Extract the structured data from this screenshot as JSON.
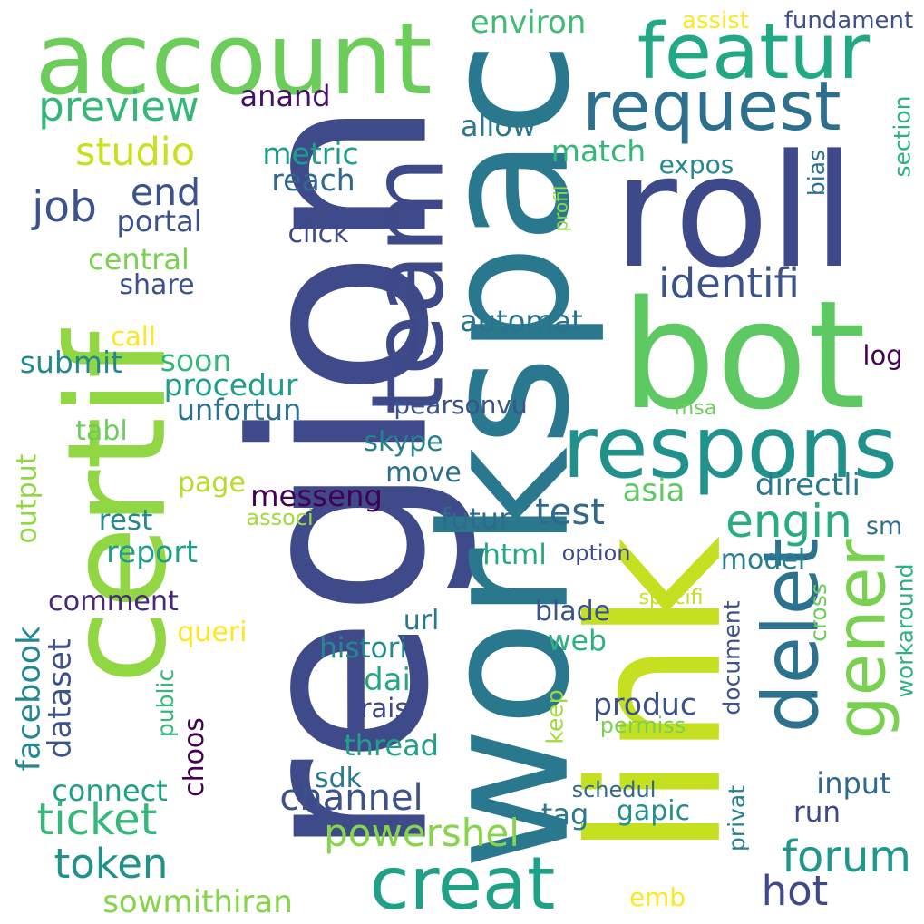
{
  "words": [
    {
      "text": "region",
      "color": "#3f4a8a"
    },
    {
      "text": "workspac",
      "color": "#2a788e"
    },
    {
      "text": "link",
      "color": "#c4e021"
    },
    {
      "text": "bot",
      "color": "#5ec962"
    },
    {
      "text": "certif",
      "color": "#90d743"
    },
    {
      "text": "roll",
      "color": "#3e4989"
    },
    {
      "text": "account",
      "color": "#6ccd5a"
    },
    {
      "text": "team",
      "color": "#3e4989"
    },
    {
      "text": "respons",
      "color": "#21918c"
    },
    {
      "text": "featur",
      "color": "#22a884"
    },
    {
      "text": "creat",
      "color": "#1fa187"
    },
    {
      "text": "request",
      "color": "#2d708e"
    },
    {
      "text": "gener",
      "color": "#7ad151"
    },
    {
      "text": "delet",
      "color": "#2c728e"
    },
    {
      "text": "test",
      "color": "#31688e"
    },
    {
      "text": "engin",
      "color": "#27ad81"
    },
    {
      "text": "identifi",
      "color": "#3b528b"
    },
    {
      "text": "channel",
      "color": "#3b528b"
    },
    {
      "text": "powershel",
      "color": "#86d549"
    },
    {
      "text": "forum",
      "color": "#1f988b"
    },
    {
      "text": "hot",
      "color": "#3e4989"
    },
    {
      "text": "token",
      "color": "#21918c"
    },
    {
      "text": "ticket",
      "color": "#35b779"
    },
    {
      "text": "preview",
      "color": "#35b779"
    },
    {
      "text": "studio",
      "color": "#c8e020"
    },
    {
      "text": "end",
      "color": "#3b528b"
    },
    {
      "text": "job",
      "color": "#3b528b"
    },
    {
      "text": "anand",
      "color": "#471164"
    },
    {
      "text": "environ",
      "color": "#3dbc74"
    },
    {
      "text": "assist",
      "color": "#fde725"
    },
    {
      "text": "fundament",
      "color": "#3b528b"
    },
    {
      "text": "allow",
      "color": "#2a788e"
    },
    {
      "text": "match",
      "color": "#35b779"
    },
    {
      "text": "expos",
      "color": "#23898e"
    },
    {
      "text": "metric",
      "color": "#1f9e89"
    },
    {
      "text": "reach",
      "color": "#31688e"
    },
    {
      "text": "portal",
      "color": "#3b528b"
    },
    {
      "text": "click",
      "color": "#3e4989"
    },
    {
      "text": "central",
      "color": "#7ad151"
    },
    {
      "text": "share",
      "color": "#3b528b"
    },
    {
      "text": "automat",
      "color": "#2c728e"
    },
    {
      "text": "call",
      "color": "#fde725"
    },
    {
      "text": "soon",
      "color": "#35b779"
    },
    {
      "text": "submit",
      "color": "#23898e"
    },
    {
      "text": "procedur",
      "color": "#1f9e89"
    },
    {
      "text": "unfortun",
      "color": "#2c728e"
    },
    {
      "text": "pearsonvu",
      "color": "#3b528b"
    },
    {
      "text": "msa",
      "color": "#6ccd5a"
    },
    {
      "text": "log",
      "color": "#440154"
    },
    {
      "text": "tabl",
      "color": "#6ccd5a"
    },
    {
      "text": "skype",
      "color": "#26828e"
    },
    {
      "text": "move",
      "color": "#2d708e"
    },
    {
      "text": "page",
      "color": "#b5de2b"
    },
    {
      "text": "messeng",
      "color": "#440154"
    },
    {
      "text": "asia",
      "color": "#5ec962"
    },
    {
      "text": "directli",
      "color": "#2a788e"
    },
    {
      "text": "futur",
      "color": "#31688e"
    },
    {
      "text": "rest",
      "color": "#23898e"
    },
    {
      "text": "associ",
      "color": "#a0da39"
    },
    {
      "text": "sm",
      "color": "#2c728e"
    },
    {
      "text": "report",
      "color": "#1f9e89"
    },
    {
      "text": "html",
      "color": "#22a884"
    },
    {
      "text": "option",
      "color": "#3e4989"
    },
    {
      "text": "model",
      "color": "#27808e"
    },
    {
      "text": "comment",
      "color": "#482878"
    },
    {
      "text": "specifi",
      "color": "#c2df23"
    },
    {
      "text": "blade",
      "color": "#3b528b"
    },
    {
      "text": "queri",
      "color": "#fde725"
    },
    {
      "text": "url",
      "color": "#2a788e"
    },
    {
      "text": "web",
      "color": "#2db27d"
    },
    {
      "text": "histori",
      "color": "#23898e"
    },
    {
      "text": "dai",
      "color": "#22a884"
    },
    {
      "text": "produc",
      "color": "#3b528b"
    },
    {
      "text": "rais",
      "color": "#3e4989"
    },
    {
      "text": "permiss",
      "color": "#7ad151"
    },
    {
      "text": "thread",
      "color": "#1fa187"
    },
    {
      "text": "sdk",
      "color": "#2a788e"
    },
    {
      "text": "connect",
      "color": "#1fa187"
    },
    {
      "text": "schedul",
      "color": "#31688e"
    },
    {
      "text": "input",
      "color": "#31688e"
    },
    {
      "text": "tag",
      "color": "#2a788e"
    },
    {
      "text": "gapic",
      "color": "#21918c"
    },
    {
      "text": "run",
      "color": "#3e4989"
    },
    {
      "text": "sowmithiran",
      "color": "#86d549"
    },
    {
      "text": "emb",
      "color": "#fde725"
    },
    {
      "text": "facebook",
      "color": "#23898e"
    },
    {
      "text": "dataset",
      "color": "#3b528b"
    },
    {
      "text": "public",
      "color": "#35b779"
    },
    {
      "text": "choos",
      "color": "#440154"
    },
    {
      "text": "output",
      "color": "#90d743"
    },
    {
      "text": "keep",
      "color": "#a0da39"
    },
    {
      "text": "document",
      "color": "#3b528b"
    },
    {
      "text": "privat",
      "color": "#26828e"
    },
    {
      "text": "cross",
      "color": "#6ccd5a"
    },
    {
      "text": "workaround",
      "color": "#2db27d"
    },
    {
      "text": "section",
      "color": "#2db27d"
    },
    {
      "text": "bias",
      "color": "#2c728e"
    },
    {
      "text": "profil",
      "color": "#8fd744"
    }
  ]
}
